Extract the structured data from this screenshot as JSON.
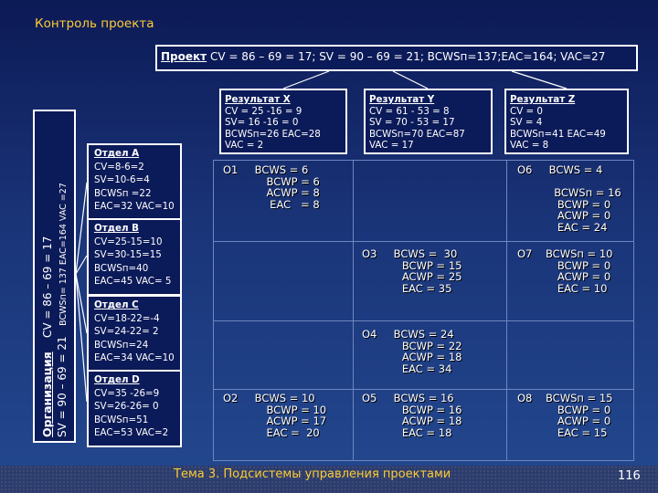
{
  "header": {
    "title": "Контроль проекта"
  },
  "project": {
    "label": "Проект",
    "text": " CV = 86 – 69 =  17; SV = 90 – 69 =  21; BCWSп=137;EAC=164; VAC=27"
  },
  "results": [
    {
      "title": "Результат X",
      "lines": [
        "CV = 25 -16 = 9",
        "SV= 16 -16 =  0",
        "BCWSп=26  EAC=28",
        "VAC = 2"
      ]
    },
    {
      "title": "Результат Y",
      "lines": [
        "CV = 61 - 53 = 8",
        "SV = 70 - 53 = 17",
        "BCWSп=70  EAC=87",
        "VAC = 17"
      ]
    },
    {
      "title": "Результат Z",
      "lines": [
        "CV = 0",
        "SV = 4",
        "BCWSп=41  EAC=49",
        "VAC = 8"
      ]
    }
  ],
  "organization": {
    "label": "Организация",
    "cv": "CV = 86 – 69 = 17",
    "sv": "SV = 90 – 69 =  21",
    "extra": "BCWSп= 137  EAC=164  VAC =27"
  },
  "departments": [
    {
      "title": "Отдел А",
      "lines": [
        "CV=8-6=2",
        "SV=10-6=4",
        "BCWSп =22",
        "EAC=32 VAC=10"
      ]
    },
    {
      "title": "Отдел В",
      "lines": [
        "CV=25-15=10",
        "SV=30-15=15",
        "BCWSп=40",
        "EAC=45 VAC= 5"
      ]
    },
    {
      "title": "Отдел С",
      "lines": [
        "CV=18-22=-4",
        "SV=24-22= 2",
        "BCWSп=24",
        "EAC=34 VAC=10"
      ]
    },
    {
      "title": "Отдел D",
      "lines": [
        "CV=35 -26=9",
        "SV=26-26= 0",
        "BCWSп=51",
        "EAC=53 VAC=2"
      ]
    }
  ],
  "cells": {
    "O1": "О1     BCWS = 6\n             BCWP = 6\n             ACWP = 8\n              EAC   = 8",
    "O6": "О6     BCWS = 4\n\n           BCWSп = 16\n            BCWP = 0\n            ACWP = 0\n            EAC = 24",
    "O3": "О3     BCWS =  30\n            BCWP = 15\n            ACWP = 25\n            EAC = 35",
    "O7": "О7    BCWSп = 10\n            BCWP = 0\n            ACWP = 0\n            EAC = 10",
    "O4": "О4     BCWS = 24\n            BCWP = 22\n            ACWP = 18\n            EAC = 34",
    "O2": "О2     BCWS = 10\n             BCWP = 10\n             ACWP = 17\n             EAC =  20",
    "O5": "О5     BCWS = 16\n            BCWP = 16\n            ACWP = 18\n            EAC = 18",
    "O8": "О8    BCWSп = 15\n            BCWP = 0\n            ACWP = 0\n            EAC = 15"
  },
  "footer": {
    "topic": "Тема 3. Подсистемы управления проектами",
    "page": "116"
  }
}
